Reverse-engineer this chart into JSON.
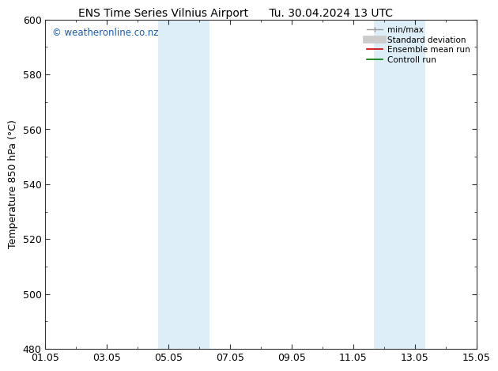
{
  "title_left": "ENS Time Series Vilnius Airport",
  "title_right": "Tu. 30.04.2024 13 UTC",
  "ylabel": "Temperature 850 hPa (°C)",
  "ylim": [
    480,
    600
  ],
  "yticks": [
    480,
    500,
    520,
    540,
    560,
    580,
    600
  ],
  "xtick_labels": [
    "01.05",
    "03.05",
    "05.05",
    "07.05",
    "09.05",
    "11.05",
    "13.05",
    "15.05"
  ],
  "xtick_positions": [
    0,
    2,
    4,
    6,
    8,
    10,
    12,
    14
  ],
  "xlim": [
    0,
    14
  ],
  "shaded_regions": [
    {
      "x_start": 3.67,
      "x_end": 5.33,
      "color": "#ddeef8"
    },
    {
      "x_start": 10.67,
      "x_end": 12.33,
      "color": "#ddeef8"
    }
  ],
  "watermark_text": "© weatheronline.co.nz",
  "watermark_color": "#1a5cb0",
  "legend_labels": [
    "min/max",
    "Standard deviation",
    "Ensemble mean run",
    "Controll run"
  ],
  "legend_colors": [
    "#999999",
    "#cccccc",
    "#cc0000",
    "#007700"
  ],
  "background_color": "#ffffff",
  "plot_bg_color": "#ffffff",
  "tick_color": "#333333",
  "font_size": 9,
  "title_font_size": 10,
  "ylabel_fontsize": 9
}
